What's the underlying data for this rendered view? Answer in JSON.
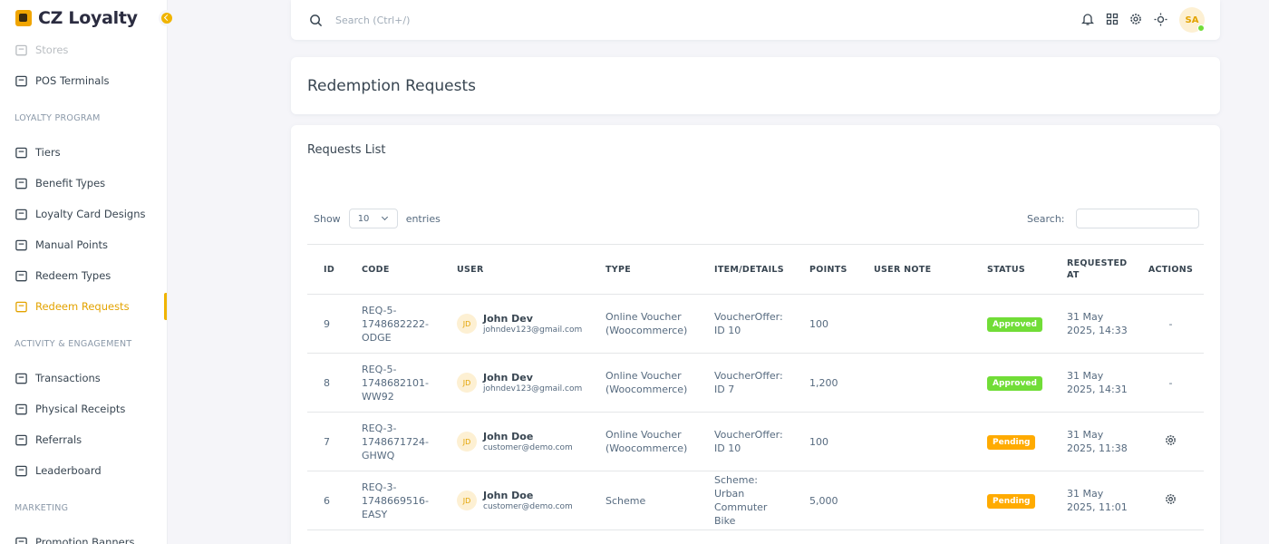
{
  "sidebar": {
    "brand": "CZ Loyalty",
    "nav": [
      {
        "label": "Stores",
        "faded": true
      },
      {
        "label": "POS Terminals"
      },
      {
        "section": "LOYALTY PROGRAM"
      },
      {
        "label": "Tiers"
      },
      {
        "label": "Benefit Types"
      },
      {
        "label": "Loyalty Card Designs"
      },
      {
        "label": "Manual Points"
      },
      {
        "label": "Redeem Types"
      },
      {
        "label": "Redeem Requests",
        "active": true
      },
      {
        "section": "ACTIVITY & ENGAGEMENT"
      },
      {
        "label": "Transactions"
      },
      {
        "label": "Physical Receipts"
      },
      {
        "label": "Referrals"
      },
      {
        "label": "Leaderboard"
      },
      {
        "section": "MARKETING"
      },
      {
        "label": "Promotion Banners"
      }
    ]
  },
  "topbar": {
    "search_placeholder": "Search (Ctrl+/)",
    "avatar": "SA"
  },
  "page": {
    "title": "Redemption Requests"
  },
  "card": {
    "title": "Requests List",
    "show": "Show",
    "entries_value": "10",
    "entries": "entries",
    "search": "Search:"
  },
  "table": {
    "headers": [
      "ID",
      "CODE",
      "USER",
      "TYPE",
      "ITEM/DETAILS",
      "POINTS",
      "USER NOTE",
      "STATUS",
      "REQUESTED AT",
      "ACTIONS"
    ],
    "rows": [
      {
        "id": 9,
        "code": "REQ-5-1748682222-ODGE",
        "initials": "JD",
        "name": "John Dev",
        "email": "johndev123@gmail.com",
        "type": "Online Voucher (Woocommerce)",
        "item": "VoucherOffer: ID 10",
        "points": "100",
        "status": "Approved",
        "requested_at": "31 May 2025, 14:33",
        "action": "-"
      },
      {
        "id": 8,
        "code": "REQ-5-1748682101-WW92",
        "initials": "JD",
        "name": "John Dev",
        "email": "johndev123@gmail.com",
        "type": "Online Voucher (Woocommerce)",
        "item": "VoucherOffer: ID 7",
        "points": "1,200",
        "status": "Approved",
        "requested_at": "31 May 2025, 14:31",
        "action": "-"
      },
      {
        "id": 7,
        "code": "REQ-3-1748671724-GHWQ",
        "initials": "JD",
        "name": "John Doe",
        "email": "customer@demo.com",
        "type": "Online Voucher (Woocommerce)",
        "item": "VoucherOffer: ID 10",
        "points": "100",
        "status": "Pending",
        "requested_at": "31 May 2025, 11:38"
      },
      {
        "id": 6,
        "code": "REQ-3-1748669516-EASY",
        "initials": "JD",
        "name": "John Doe",
        "email": "customer@demo.com",
        "type": "Scheme",
        "item": "Scheme: Urban Commuter Bike",
        "points": "5,000",
        "status": "Pending",
        "requested_at": "31 May 2025, 11:01"
      }
    ]
  }
}
